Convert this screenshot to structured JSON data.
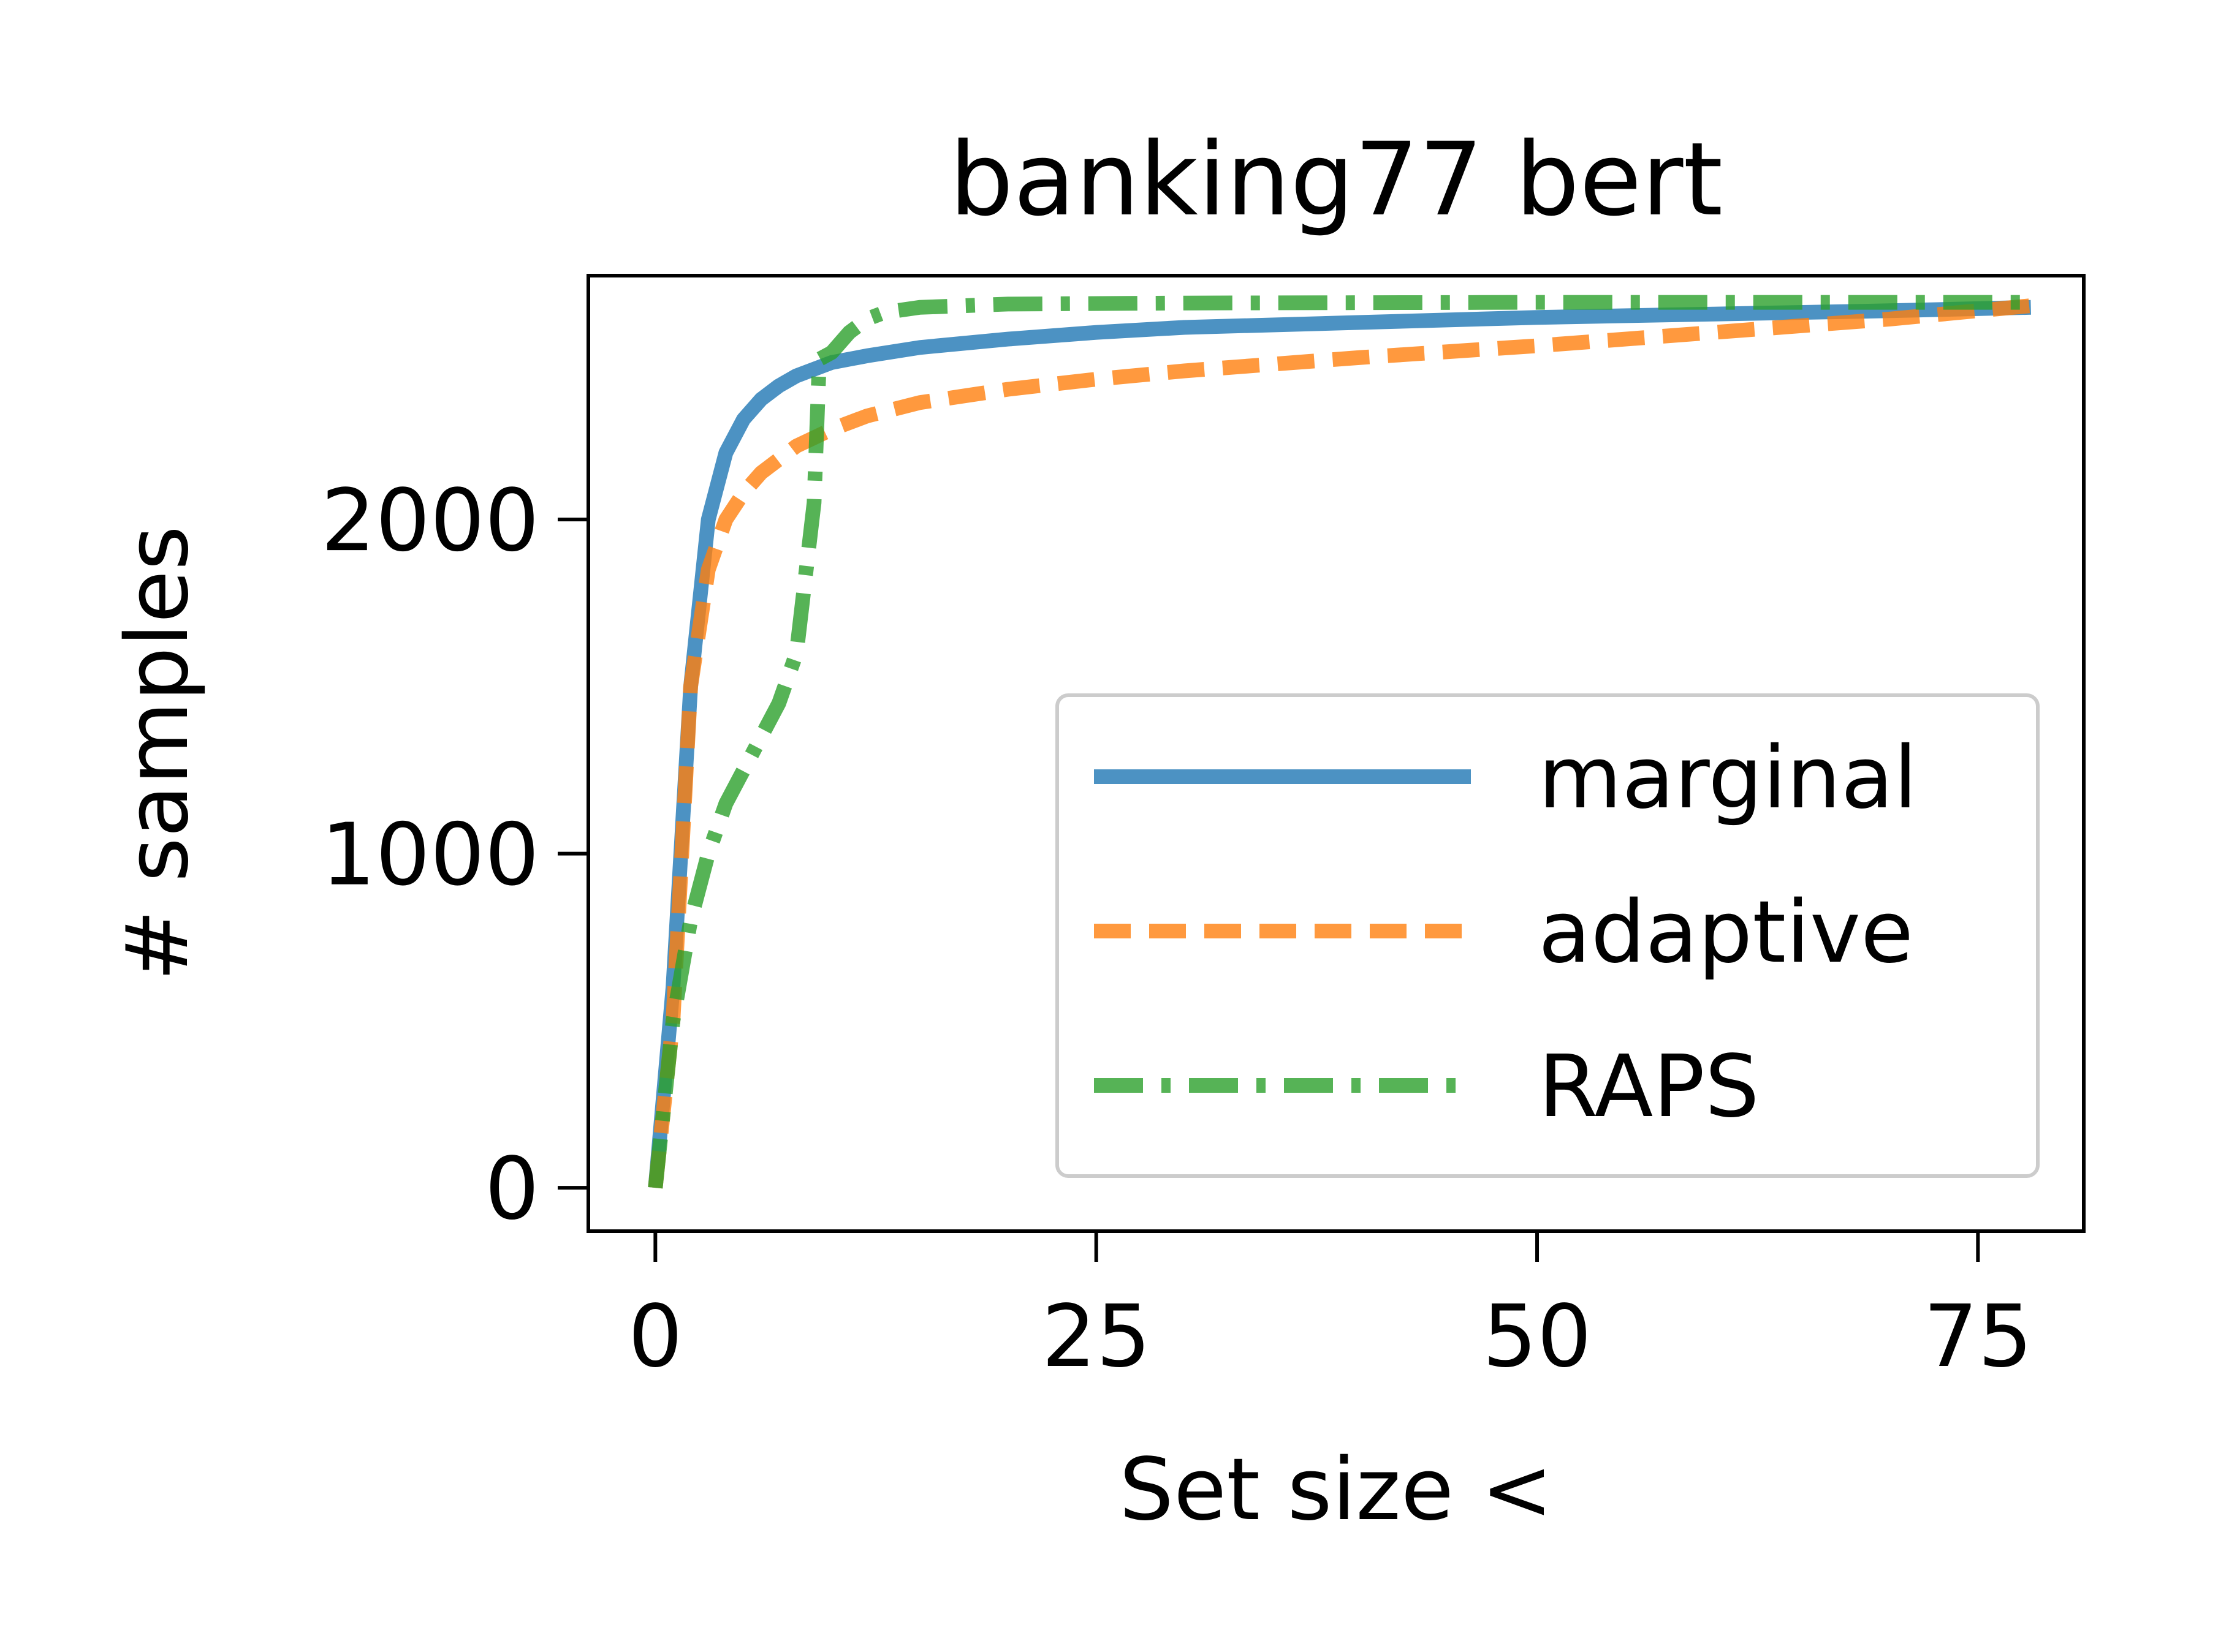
{
  "chart_data": {
    "type": "line",
    "title": "banking77 bert",
    "xlabel": "Set size <",
    "ylabel": "# samples",
    "xlim": [
      -3.8,
      81
    ],
    "ylim": [
      -130,
      2730
    ],
    "x_ticks": [
      0,
      25,
      50,
      75
    ],
    "y_ticks": [
      0,
      1000,
      2000
    ],
    "grid": false,
    "legend": {
      "position": "lower-right",
      "entries": [
        "marginal",
        "adaptive",
        "RAPS"
      ]
    },
    "series": [
      {
        "name": "marginal",
        "color": "#1f77b4",
        "style": "solid",
        "points": [
          [
            0,
            0
          ],
          [
            1,
            600
          ],
          [
            2,
            1500
          ],
          [
            3,
            2000
          ],
          [
            4,
            2200
          ],
          [
            5,
            2300
          ],
          [
            6,
            2360
          ],
          [
            7,
            2400
          ],
          [
            8,
            2430
          ],
          [
            9,
            2450
          ],
          [
            10,
            2470
          ],
          [
            12,
            2490
          ],
          [
            15,
            2515
          ],
          [
            20,
            2540
          ],
          [
            25,
            2560
          ],
          [
            30,
            2575
          ],
          [
            40,
            2590
          ],
          [
            50,
            2605
          ],
          [
            60,
            2615
          ],
          [
            70,
            2625
          ],
          [
            78,
            2635
          ]
        ]
      },
      {
        "name": "adaptive",
        "color": "#ff7f0e",
        "style": "dashed",
        "points": [
          [
            0,
            0
          ],
          [
            1,
            500
          ],
          [
            2,
            1500
          ],
          [
            3,
            1850
          ],
          [
            4,
            2000
          ],
          [
            5,
            2080
          ],
          [
            6,
            2140
          ],
          [
            7,
            2180
          ],
          [
            8,
            2220
          ],
          [
            10,
            2270
          ],
          [
            12,
            2310
          ],
          [
            15,
            2350
          ],
          [
            20,
            2390
          ],
          [
            25,
            2420
          ],
          [
            30,
            2445
          ],
          [
            40,
            2485
          ],
          [
            50,
            2520
          ],
          [
            60,
            2560
          ],
          [
            70,
            2600
          ],
          [
            78,
            2640
          ]
        ]
      },
      {
        "name": "RAPS",
        "color": "#2ca02c",
        "style": "dashdot",
        "points": [
          [
            0,
            0
          ],
          [
            1,
            500
          ],
          [
            2,
            800
          ],
          [
            3,
            1000
          ],
          [
            4,
            1150
          ],
          [
            5,
            1250
          ],
          [
            6,
            1350
          ],
          [
            7,
            1450
          ],
          [
            8,
            1600
          ],
          [
            9,
            2050
          ],
          [
            9.3,
            2480
          ],
          [
            10,
            2500
          ],
          [
            11,
            2560
          ],
          [
            12,
            2600
          ],
          [
            13,
            2620
          ],
          [
            15,
            2635
          ],
          [
            20,
            2645
          ],
          [
            30,
            2648
          ],
          [
            50,
            2650
          ],
          [
            78,
            2650
          ]
        ]
      }
    ]
  }
}
